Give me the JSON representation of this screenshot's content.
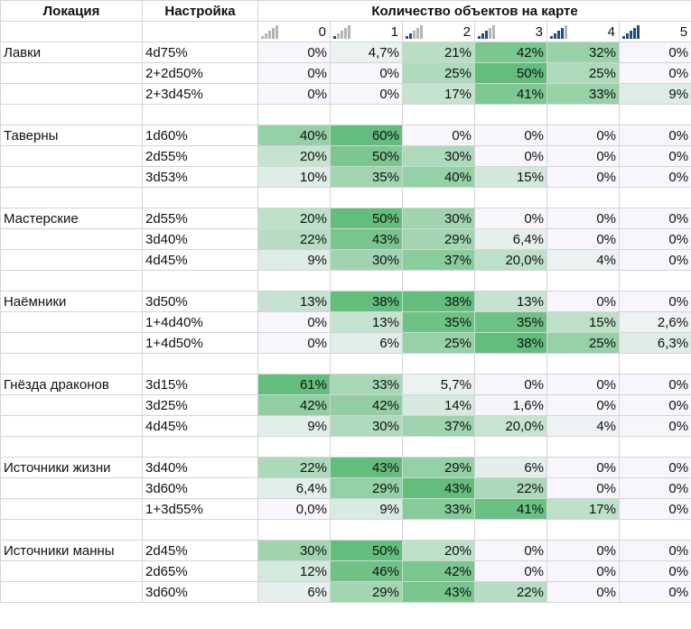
{
  "header": {
    "location": "Локация",
    "setting": "Настройка",
    "count_title": "Количество объектов на карте",
    "bins": [
      "0",
      "1",
      "2",
      "3",
      "4",
      "5"
    ]
  },
  "icons": [
    "signal-bars-0-icon",
    "signal-bars-1-icon",
    "signal-bars-2-icon",
    "signal-bars-3-icon",
    "signal-bars-4-icon",
    "signal-bars-5-icon"
  ],
  "colors": {
    "heat_low": "#f8f6fc",
    "heat_high": "#63be7b",
    "icon_on": "#1f4e79",
    "icon_off": "#b4b4b4"
  },
  "groups": [
    {
      "name": "Лавки",
      "rows": [
        {
          "setting": "4d75%",
          "vals": [
            "0%",
            "4,7%",
            "21%",
            "42%",
            "32%",
            "0%"
          ],
          "nums": [
            0,
            4.7,
            21,
            42,
            32,
            0
          ]
        },
        {
          "setting": "2+2d50%",
          "vals": [
            "0%",
            "0%",
            "25%",
            "50%",
            "25%",
            "0%"
          ],
          "nums": [
            0,
            0,
            25,
            50,
            25,
            0
          ]
        },
        {
          "setting": "2+3d45%",
          "vals": [
            "0%",
            "0%",
            "17%",
            "41%",
            "33%",
            "9%"
          ],
          "nums": [
            0,
            0,
            17,
            41,
            33,
            9
          ]
        }
      ]
    },
    {
      "name": "Таверны",
      "rows": [
        {
          "setting": "1d60%",
          "vals": [
            "40%",
            "60%",
            "0%",
            "0%",
            "0%",
            "0%"
          ],
          "nums": [
            40,
            60,
            0,
            0,
            0,
            0
          ]
        },
        {
          "setting": "2d55%",
          "vals": [
            "20%",
            "50%",
            "30%",
            "0%",
            "0%",
            "0%"
          ],
          "nums": [
            20,
            50,
            30,
            0,
            0,
            0
          ]
        },
        {
          "setting": "3d53%",
          "vals": [
            "10%",
            "35%",
            "40%",
            "15%",
            "0%",
            "0%"
          ],
          "nums": [
            10,
            35,
            40,
            15,
            0,
            0
          ]
        }
      ]
    },
    {
      "name": "Мастерские",
      "rows": [
        {
          "setting": "2d55%",
          "vals": [
            "20%",
            "50%",
            "30%",
            "0%",
            "0%",
            "0%"
          ],
          "nums": [
            20,
            50,
            30,
            0,
            0,
            0
          ]
        },
        {
          "setting": "3d40%",
          "vals": [
            "22%",
            "43%",
            "29%",
            "6,4%",
            "0%",
            "0%"
          ],
          "nums": [
            22,
            43,
            29,
            6.4,
            0,
            0
          ]
        },
        {
          "setting": "4d45%",
          "vals": [
            "9%",
            "30%",
            "37%",
            "20,0%",
            "4%",
            "0%"
          ],
          "nums": [
            9,
            30,
            37,
            20,
            4,
            0
          ]
        }
      ]
    },
    {
      "name": "Наёмники",
      "rows": [
        {
          "setting": "3d50%",
          "vals": [
            "13%",
            "38%",
            "38%",
            "13%",
            "0%",
            "0%"
          ],
          "nums": [
            13,
            38,
            38,
            13,
            0,
            0
          ]
        },
        {
          "setting": "1+4d40%",
          "vals": [
            "0%",
            "13%",
            "35%",
            "35%",
            "15%",
            "2,6%"
          ],
          "nums": [
            0,
            13,
            35,
            35,
            15,
            2.6
          ]
        },
        {
          "setting": "1+4d50%",
          "vals": [
            "0%",
            "6%",
            "25%",
            "38%",
            "25%",
            "6,3%"
          ],
          "nums": [
            0,
            6,
            25,
            38,
            25,
            6.3
          ]
        }
      ]
    },
    {
      "name": "Гнёзда драконов",
      "rows": [
        {
          "setting": "3d15%",
          "vals": [
            "61%",
            "33%",
            "5,7%",
            "0%",
            "0%",
            "0%"
          ],
          "nums": [
            61,
            33,
            5.7,
            0,
            0,
            0
          ]
        },
        {
          "setting": "3d25%",
          "vals": [
            "42%",
            "42%",
            "14%",
            "1,6%",
            "0%",
            "0%"
          ],
          "nums": [
            42,
            42,
            14,
            1.6,
            0,
            0
          ]
        },
        {
          "setting": "4d45%",
          "vals": [
            "9%",
            "30%",
            "37%",
            "20,0%",
            "4%",
            "0%"
          ],
          "nums": [
            9,
            30,
            37,
            20,
            4,
            0
          ]
        }
      ]
    },
    {
      "name": "Источники жизни",
      "rows": [
        {
          "setting": "3d40%",
          "vals": [
            "22%",
            "43%",
            "29%",
            "6%",
            "0%",
            "0%"
          ],
          "nums": [
            22,
            43,
            29,
            6,
            0,
            0
          ]
        },
        {
          "setting": "3d60%",
          "vals": [
            "6,4%",
            "29%",
            "43%",
            "22%",
            "0%",
            "0%"
          ],
          "nums": [
            6.4,
            29,
            43,
            22,
            0,
            0
          ]
        },
        {
          "setting": "1+3d55%",
          "vals": [
            "0,0%",
            "9%",
            "33%",
            "41%",
            "17%",
            "0%"
          ],
          "nums": [
            0,
            9,
            33,
            41,
            17,
            0
          ]
        }
      ]
    },
    {
      "name": "Источники манны",
      "rows": [
        {
          "setting": "2d45%",
          "vals": [
            "30%",
            "50%",
            "20%",
            "0%",
            "0%",
            "0%"
          ],
          "nums": [
            30,
            50,
            20,
            0,
            0,
            0
          ]
        },
        {
          "setting": "2d65%",
          "vals": [
            "12%",
            "46%",
            "42%",
            "0%",
            "0%",
            "0%"
          ],
          "nums": [
            12,
            46,
            42,
            0,
            0,
            0
          ]
        },
        {
          "setting": "3d60%",
          "vals": [
            "6%",
            "29%",
            "43%",
            "22%",
            "0%",
            "0%"
          ],
          "nums": [
            6,
            29,
            43,
            22,
            0,
            0
          ]
        }
      ]
    }
  ]
}
